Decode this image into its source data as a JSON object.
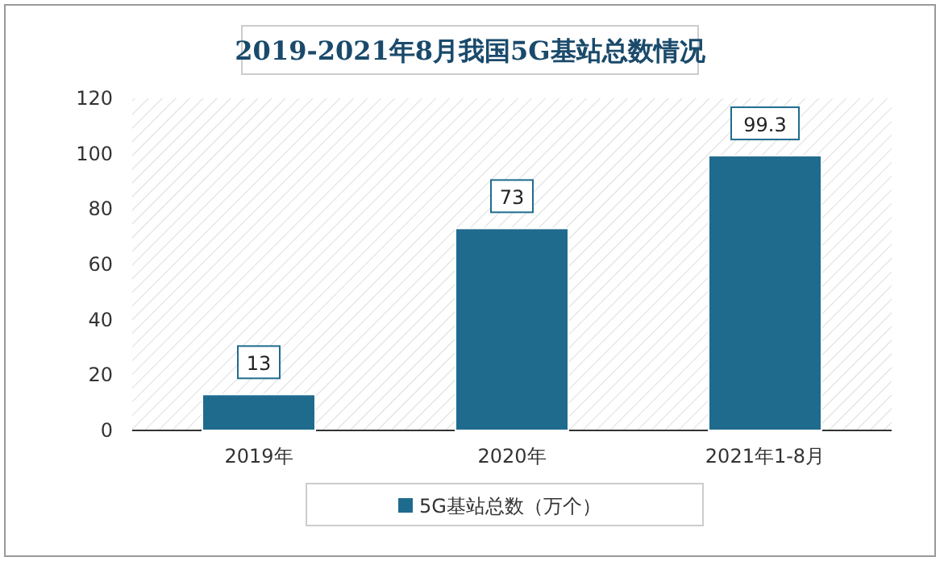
{
  "chart_data": {
    "type": "bar",
    "title": "2019-2021年8月我国5G基站总数情况",
    "categories": [
      "2019年",
      "2020年",
      "2021年1-8月"
    ],
    "series": [
      {
        "name": "5G基站总数（万个）",
        "color": "#1f6b8e",
        "values": [
          13,
          73,
          99.3
        ]
      }
    ],
    "ylim": [
      0,
      120
    ],
    "yticks": [
      0,
      20,
      40,
      60,
      80,
      100,
      120
    ],
    "data_labels": true,
    "legend": "bottom",
    "grid": false
  }
}
